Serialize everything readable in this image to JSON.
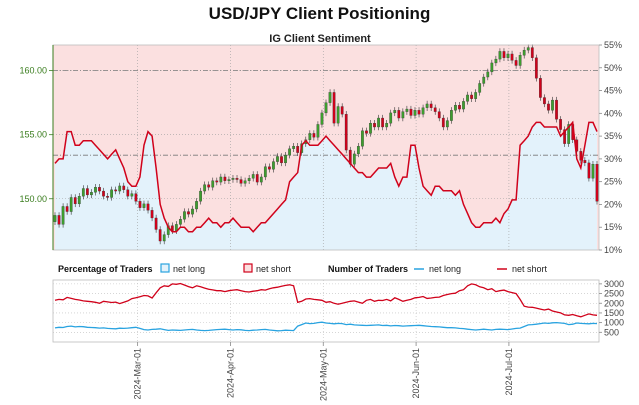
{
  "chart_data": {
    "type": "line",
    "title": "USD/JPY Client Positioning",
    "subtitle": "IG Client Sentiment",
    "x_ticks": [
      "2024-Mar-01",
      "2024-Apr-01",
      "2024-May-01",
      "2024-Jun-01",
      "2024-Jul-01"
    ],
    "price_axis": {
      "ticks": [
        "150.00",
        "155.00",
        "160.00"
      ],
      "range": [
        146,
        162
      ]
    },
    "sentiment_axis": {
      "ticks": [
        "10%",
        "15%",
        "20%",
        "25%",
        "30%",
        "35%",
        "40%",
        "45%",
        "50%",
        "55%"
      ],
      "range": [
        10,
        55
      ]
    },
    "count_axis": {
      "ticks": [
        "500",
        "1000",
        "1500",
        "2000",
        "2500",
        "3000"
      ],
      "range": [
        0,
        3200
      ]
    },
    "legend": {
      "percentage_label": "Percentage of Traders",
      "number_label": "Number of Traders",
      "net_long": "net long",
      "net_short": "net short"
    },
    "colors": {
      "net_long": "#29a3e0",
      "net_short": "#d0021b",
      "long_fill": "#e3f2fb",
      "short_fill": "#fbe0e0",
      "candle_up": "#3d9e2e",
      "candle_down": "#d0021b",
      "price_axis": "#3a7d1e"
    },
    "net_short_pct": [
      29,
      30,
      30,
      36,
      36,
      33,
      33,
      34,
      34,
      34,
      33,
      32,
      31,
      30,
      31,
      32,
      30,
      28,
      25,
      24,
      24,
      26,
      33,
      36,
      35,
      28,
      20,
      17,
      15,
      14,
      14,
      15,
      15,
      14,
      14,
      15,
      15,
      16,
      17,
      16,
      16,
      15,
      16,
      16,
      17,
      16,
      15,
      15,
      15,
      14,
      15,
      16,
      16,
      17,
      18,
      19,
      20,
      21,
      25,
      26,
      27,
      33,
      34,
      33,
      33,
      33,
      34,
      35,
      34,
      33,
      32,
      31,
      30,
      29,
      28,
      27,
      27,
      26,
      26,
      27,
      28,
      28,
      28,
      29,
      26,
      24,
      26,
      26,
      33,
      33,
      28,
      24,
      23,
      22,
      24,
      24,
      23,
      23,
      23,
      22,
      23,
      20,
      18,
      16,
      15,
      15,
      16,
      16,
      16,
      17,
      16,
      18,
      19,
      21,
      21,
      33,
      34,
      35,
      37,
      38,
      38,
      37,
      37,
      37,
      37,
      35,
      36,
      37,
      38,
      30,
      28,
      33,
      38,
      38,
      36
    ],
    "net_short_count": [
      2150,
      2200,
      2180,
      2300,
      2250,
      2200,
      2170,
      2120,
      2100,
      2080,
      2050,
      2000,
      2100,
      2070,
      2040,
      2060,
      1980,
      2050,
      2120,
      2240,
      2280,
      2340,
      2400,
      2380,
      2270,
      2540,
      2800,
      2900,
      2870,
      3000,
      2980,
      3020,
      2940,
      2860,
      2800,
      2900,
      2850,
      2780,
      2720,
      2690,
      2650,
      2650,
      2600,
      2650,
      2680,
      2700,
      2650,
      2600,
      2580,
      2620,
      2650,
      2700,
      2680,
      2750,
      2800,
      2830,
      2880,
      2920,
      2950,
      2900,
      2050,
      2100,
      2220,
      2240,
      2200,
      2180,
      2150,
      2050,
      2080,
      2000,
      1950,
      2000,
      2050,
      2100,
      2120,
      2060,
      2000,
      2150,
      2200,
      2100,
      2150,
      2140,
      2200,
      2120,
      2280,
      2200,
      2100,
      2150,
      2200,
      2280,
      2300,
      2350,
      2250,
      2270,
      2300,
      2320,
      2400,
      2450,
      2500,
      2520,
      2650,
      2700,
      2900,
      3000,
      2950,
      2850,
      2800,
      2700,
      2750,
      2600,
      2650,
      2680,
      2600,
      2550,
      2500,
      2200,
      1850,
      1800,
      1790,
      1750,
      1700,
      1650,
      1700,
      1600,
      1550,
      1500,
      1400,
      1380,
      1420,
      1350,
      1300,
      1380,
      1450,
      1400,
      1380
    ],
    "net_long_count": [
      730,
      760,
      750,
      800,
      820,
      780,
      800,
      790,
      760,
      750,
      740,
      720,
      730,
      700,
      690,
      680,
      710,
      700,
      720,
      740,
      760,
      700,
      640,
      620,
      650,
      660,
      680,
      640,
      600,
      620,
      610,
      600,
      620,
      640,
      650,
      620,
      600,
      590,
      600,
      620,
      640,
      650,
      660,
      640,
      620,
      640,
      630,
      600,
      590,
      610,
      620,
      640,
      650,
      620,
      600,
      580,
      590,
      610,
      600,
      590,
      820,
      900,
      980,
      950,
      960,
      1000,
      1020,
      980,
      960,
      940,
      960,
      950,
      900,
      920,
      880,
      870,
      860,
      850,
      860,
      870,
      880,
      850,
      860,
      830,
      850,
      840,
      820,
      830,
      840,
      850,
      860,
      840,
      820,
      800,
      790,
      780,
      760,
      740,
      740,
      730,
      700,
      690,
      660,
      640,
      620,
      640,
      660,
      640,
      620,
      650,
      660,
      650,
      640,
      670,
      700,
      720,
      800,
      880,
      900,
      920,
      950,
      980,
      960,
      990,
      1000,
      980,
      960,
      900,
      920,
      980,
      960,
      950,
      940,
      960,
      950
    ],
    "candles": [
      [
        148.2,
        148.7
      ],
      [
        148.7,
        148.0
      ],
      [
        148.0,
        149.4
      ],
      [
        149.4,
        149.0
      ],
      [
        149.0,
        150.1
      ],
      [
        150.1,
        149.6
      ],
      [
        149.6,
        150.2
      ],
      [
        150.2,
        150.8
      ],
      [
        150.8,
        150.3
      ],
      [
        150.3,
        150.5
      ],
      [
        150.5,
        150.9
      ],
      [
        150.9,
        150.6
      ],
      [
        150.6,
        150.2
      ],
      [
        150.2,
        150.1
      ],
      [
        150.1,
        150.7
      ],
      [
        150.7,
        150.6
      ],
      [
        150.6,
        151.0
      ],
      [
        151.0,
        150.7
      ],
      [
        150.7,
        150.2
      ],
      [
        150.2,
        150.4
      ],
      [
        150.4,
        149.8
      ],
      [
        149.8,
        149.3
      ],
      [
        149.3,
        149.6
      ],
      [
        149.6,
        149.1
      ],
      [
        149.1,
        148.5
      ],
      [
        148.5,
        147.6
      ],
      [
        147.6,
        146.7
      ],
      [
        146.7,
        147.2
      ],
      [
        147.2,
        147.9
      ],
      [
        147.9,
        147.5
      ],
      [
        147.5,
        148.0
      ],
      [
        148.0,
        148.4
      ],
      [
        148.4,
        149.0
      ],
      [
        149.0,
        148.8
      ],
      [
        148.8,
        149.2
      ],
      [
        149.2,
        149.8
      ],
      [
        149.8,
        150.6
      ],
      [
        150.6,
        151.1
      ],
      [
        151.1,
        150.9
      ],
      [
        150.9,
        151.4
      ],
      [
        151.4,
        151.3
      ],
      [
        151.3,
        151.7
      ],
      [
        151.7,
        151.4
      ],
      [
        151.4,
        151.5
      ],
      [
        151.5,
        151.6
      ],
      [
        151.6,
        151.5
      ],
      [
        151.5,
        151.2
      ],
      [
        151.2,
        151.4
      ],
      [
        151.4,
        151.6
      ],
      [
        151.6,
        151.9
      ],
      [
        151.9,
        151.3
      ],
      [
        151.3,
        151.7
      ],
      [
        151.7,
        152.5
      ],
      [
        152.5,
        152.3
      ],
      [
        152.3,
        152.9
      ],
      [
        152.9,
        153.3
      ],
      [
        153.3,
        152.8
      ],
      [
        152.8,
        153.4
      ],
      [
        153.4,
        153.9
      ],
      [
        153.9,
        154.1
      ],
      [
        154.1,
        153.6
      ],
      [
        153.6,
        154.3
      ],
      [
        154.3,
        154.6
      ],
      [
        154.6,
        155.1
      ],
      [
        155.1,
        154.8
      ],
      [
        154.8,
        155.8
      ],
      [
        155.8,
        156.7
      ],
      [
        156.7,
        157.5
      ],
      [
        157.5,
        158.3
      ],
      [
        158.3,
        155.9
      ],
      [
        155.9,
        157.2
      ],
      [
        157.2,
        156.6
      ],
      [
        156.6,
        153.8
      ],
      [
        153.8,
        152.7
      ],
      [
        152.7,
        153.5
      ],
      [
        153.5,
        154.1
      ],
      [
        154.1,
        155.3
      ],
      [
        155.3,
        155.1
      ],
      [
        155.1,
        155.9
      ],
      [
        155.9,
        155.6
      ],
      [
        155.6,
        156.3
      ],
      [
        156.3,
        155.6
      ],
      [
        155.6,
        155.9
      ],
      [
        155.9,
        156.7
      ],
      [
        156.7,
        156.9
      ],
      [
        156.9,
        156.3
      ],
      [
        156.3,
        156.8
      ],
      [
        156.8,
        157.0
      ],
      [
        157.0,
        156.5
      ],
      [
        156.5,
        156.9
      ],
      [
        156.9,
        156.6
      ],
      [
        156.6,
        157.1
      ],
      [
        157.1,
        157.4
      ],
      [
        157.4,
        157.1
      ],
      [
        157.1,
        156.8
      ],
      [
        156.8,
        156.3
      ],
      [
        156.3,
        155.6
      ],
      [
        155.6,
        156.1
      ],
      [
        156.1,
        156.9
      ],
      [
        156.9,
        157.3
      ],
      [
        157.3,
        157.0
      ],
      [
        157.0,
        157.6
      ],
      [
        157.6,
        158.1
      ],
      [
        158.1,
        157.8
      ],
      [
        157.8,
        158.3
      ],
      [
        158.3,
        159.0
      ],
      [
        159.0,
        159.5
      ],
      [
        159.5,
        159.9
      ],
      [
        159.9,
        160.6
      ],
      [
        160.6,
        160.9
      ],
      [
        160.9,
        161.5
      ],
      [
        161.5,
        161.0
      ],
      [
        161.0,
        161.3
      ],
      [
        161.3,
        160.8
      ],
      [
        160.8,
        160.4
      ],
      [
        160.4,
        161.2
      ],
      [
        161.2,
        161.6
      ],
      [
        161.6,
        161.8
      ],
      [
        161.8,
        161.0
      ],
      [
        161.0,
        159.4
      ],
      [
        159.4,
        157.9
      ],
      [
        157.9,
        157.4
      ],
      [
        157.4,
        156.9
      ],
      [
        156.9,
        157.7
      ],
      [
        157.7,
        156.2
      ],
      [
        156.2,
        155.4
      ],
      [
        155.4,
        154.3
      ],
      [
        154.3,
        155.8
      ],
      [
        155.8,
        154.6
      ],
      [
        154.6,
        153.7
      ],
      [
        153.7,
        153.0
      ],
      [
        153.0,
        152.8
      ],
      [
        152.8,
        151.6
      ],
      [
        151.6,
        152.7
      ],
      [
        152.7,
        149.8
      ]
    ],
    "reference_levels": [
      160.0,
      153.4
    ]
  }
}
